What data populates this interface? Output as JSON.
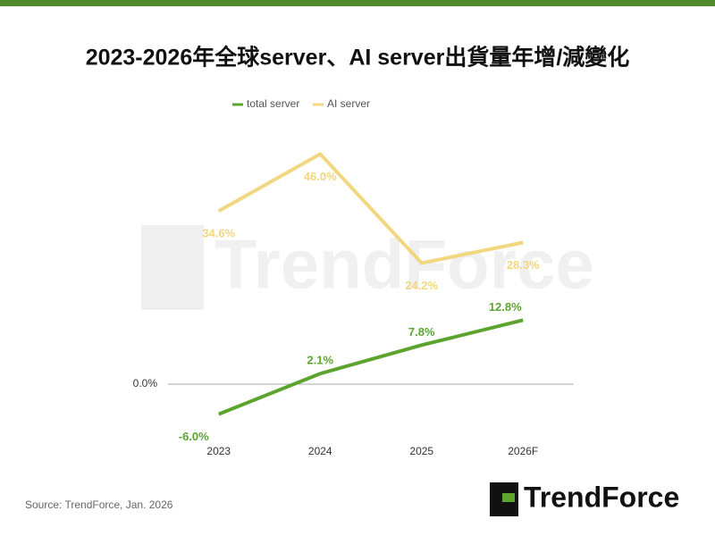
{
  "chart_data": {
    "type": "line",
    "title": "2023-2026年全球server、AI server出貨量年增/減變化",
    "categories": [
      "2023",
      "2024",
      "2025",
      "2026F"
    ],
    "series": [
      {
        "name": "total server",
        "color": "#5da42e",
        "values": [
          -6.0,
          2.1,
          7.8,
          12.8
        ],
        "value_labels": [
          "-6.0%",
          "2.1%",
          "7.8%",
          "12.8%"
        ]
      },
      {
        "name": "AI server",
        "color": "#f1d77f",
        "values": [
          34.6,
          46.0,
          24.2,
          28.3
        ],
        "value_labels": [
          "34.6%",
          "46.0%",
          "24.2%",
          "28.3%"
        ]
      }
    ],
    "ylim": [
      -10,
      50
    ],
    "yticks": [
      {
        "value": 0,
        "label": "0.0%"
      }
    ],
    "grid": true,
    "legend": "top",
    "watermark": "TrendForce",
    "source": "Source: TrendForce, Jan. 2026",
    "logo": "TrendForce"
  }
}
